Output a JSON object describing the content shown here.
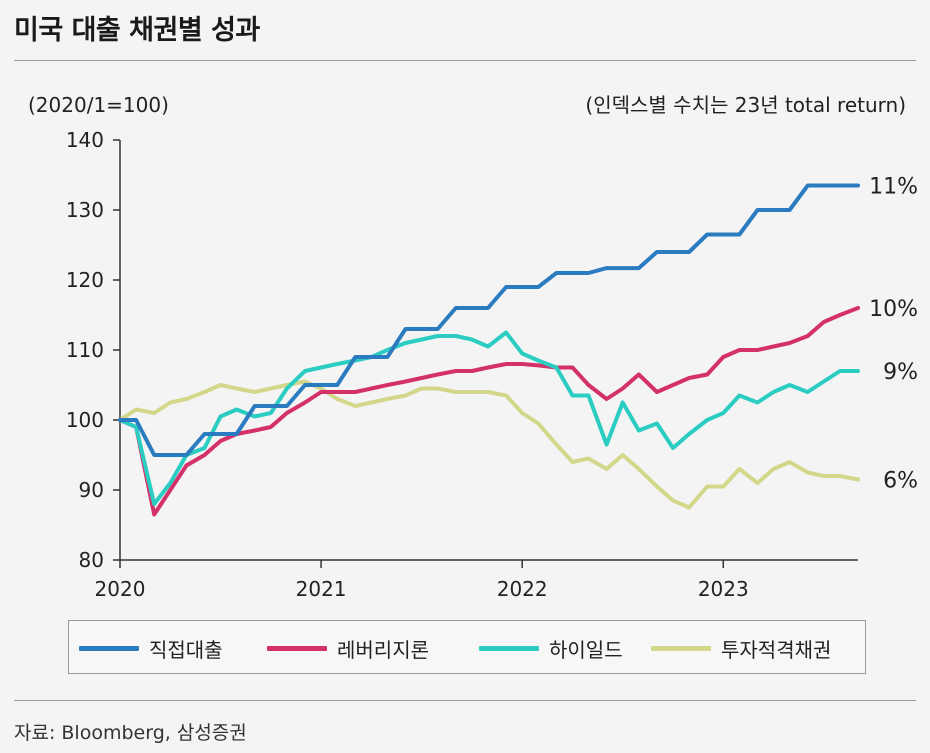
{
  "title": "미국 대출 채권별 성과",
  "source": "자료: Bloomberg, 삼성증권",
  "chart_data": {
    "type": "line",
    "subtitle_left": "(2020/1=100)",
    "subtitle_right": "(인덱스별 수치는 23년 total return)",
    "ylim": [
      80,
      140
    ],
    "yticks": [
      "80",
      "90",
      "100",
      "110",
      "120",
      "130",
      "140"
    ],
    "xlim": [
      2020.0,
      2023.67
    ],
    "xticks": [
      "2020",
      "2021",
      "2022",
      "2023"
    ],
    "series": [
      {
        "name": "직접대출",
        "color": "#2a7bc0",
        "end_label": "11%",
        "x": [
          2020.0,
          2020.08,
          2020.17,
          2020.25,
          2020.33,
          2020.42,
          2020.5,
          2020.58,
          2020.67,
          2020.75,
          2020.83,
          2020.92,
          2021.0,
          2021.08,
          2021.17,
          2021.25,
          2021.33,
          2021.42,
          2021.5,
          2021.58,
          2021.67,
          2021.75,
          2021.83,
          2021.92,
          2022.0,
          2022.08,
          2022.17,
          2022.25,
          2022.33,
          2022.42,
          2022.5,
          2022.58,
          2022.67,
          2022.75,
          2022.83,
          2022.92,
          2023.0,
          2023.08,
          2023.17,
          2023.25,
          2023.33,
          2023.42,
          2023.5,
          2023.58,
          2023.67
        ],
        "values": [
          100,
          100,
          95,
          95,
          95,
          98,
          98,
          98,
          102,
          102,
          102,
          105,
          105,
          105,
          109,
          109,
          109,
          113,
          113,
          113,
          116,
          116,
          116,
          119,
          119,
          119,
          121,
          121,
          121,
          121.7,
          121.7,
          121.7,
          124,
          124,
          124,
          126.5,
          126.5,
          126.5,
          130,
          130,
          130,
          133.5,
          133.5,
          133.5,
          133.5
        ]
      },
      {
        "name": "레버리지론",
        "color": "#d4306a",
        "end_label": "10%",
        "x": [
          2020.0,
          2020.08,
          2020.17,
          2020.25,
          2020.33,
          2020.42,
          2020.5,
          2020.58,
          2020.67,
          2020.75,
          2020.83,
          2020.92,
          2021.0,
          2021.08,
          2021.17,
          2021.25,
          2021.33,
          2021.42,
          2021.5,
          2021.58,
          2021.67,
          2021.75,
          2021.83,
          2021.92,
          2022.0,
          2022.08,
          2022.17,
          2022.25,
          2022.33,
          2022.42,
          2022.5,
          2022.58,
          2022.67,
          2022.75,
          2022.83,
          2022.92,
          2023.0,
          2023.08,
          2023.17,
          2023.25,
          2023.33,
          2023.42,
          2023.5,
          2023.58,
          2023.67
        ],
        "values": [
          100,
          99,
          86.5,
          90,
          93.5,
          95,
          97,
          98,
          98.5,
          99,
          101,
          102.5,
          104,
          104,
          104,
          104.5,
          105,
          105.5,
          106,
          106.5,
          107,
          107,
          107.5,
          108,
          108,
          107.8,
          107.5,
          107.5,
          105,
          103,
          104.5,
          106.5,
          104,
          105,
          106,
          106.5,
          109,
          110,
          110,
          110.5,
          111,
          112,
          114,
          115,
          116
        ]
      },
      {
        "name": "하이일드",
        "color": "#2bcdc3",
        "end_label": "9%",
        "x": [
          2020.0,
          2020.08,
          2020.17,
          2020.25,
          2020.33,
          2020.42,
          2020.5,
          2020.58,
          2020.67,
          2020.75,
          2020.83,
          2020.92,
          2021.0,
          2021.08,
          2021.17,
          2021.25,
          2021.33,
          2021.42,
          2021.5,
          2021.58,
          2021.67,
          2021.75,
          2021.83,
          2021.92,
          2022.0,
          2022.08,
          2022.17,
          2022.25,
          2022.33,
          2022.42,
          2022.5,
          2022.58,
          2022.67,
          2022.75,
          2022.83,
          2022.92,
          2023.0,
          2023.08,
          2023.17,
          2023.25,
          2023.33,
          2023.42,
          2023.5,
          2023.58,
          2023.67
        ],
        "values": [
          100,
          99,
          88,
          91,
          95,
          96,
          100.5,
          101.5,
          100.5,
          101,
          104.5,
          107,
          107.5,
          108,
          108.5,
          109,
          110,
          111,
          111.5,
          112,
          112,
          111.5,
          110.5,
          112.5,
          109.5,
          108.5,
          107.5,
          103.5,
          103.5,
          96.5,
          102.5,
          98.5,
          99.5,
          96,
          98,
          100,
          101,
          103.5,
          102.5,
          104,
          105,
          104,
          105.5,
          107,
          107
        ]
      },
      {
        "name": "투자적격채권",
        "color": "#d3d78a",
        "end_label": "6%",
        "x": [
          2020.0,
          2020.08,
          2020.17,
          2020.25,
          2020.33,
          2020.42,
          2020.5,
          2020.58,
          2020.67,
          2020.75,
          2020.83,
          2020.92,
          2021.0,
          2021.08,
          2021.17,
          2021.25,
          2021.33,
          2021.42,
          2021.5,
          2021.58,
          2021.67,
          2021.75,
          2021.83,
          2021.92,
          2022.0,
          2022.08,
          2022.17,
          2022.25,
          2022.33,
          2022.42,
          2022.5,
          2022.58,
          2022.67,
          2022.75,
          2022.83,
          2022.92,
          2023.0,
          2023.08,
          2023.17,
          2023.25,
          2023.33,
          2023.42,
          2023.5,
          2023.58,
          2023.67
        ],
        "values": [
          100,
          101.5,
          101,
          102.5,
          103,
          104,
          105,
          104.5,
          104,
          104.5,
          105,
          105.5,
          104.5,
          103,
          102,
          102.5,
          103,
          103.5,
          104.5,
          104.5,
          104,
          104,
          104,
          103.5,
          101,
          99.5,
          96.5,
          94,
          94.5,
          93,
          95,
          93,
          90.5,
          88.5,
          87.5,
          90.5,
          90.5,
          93,
          91,
          93,
          94,
          92.5,
          92,
          92,
          91.5
        ]
      }
    ]
  }
}
